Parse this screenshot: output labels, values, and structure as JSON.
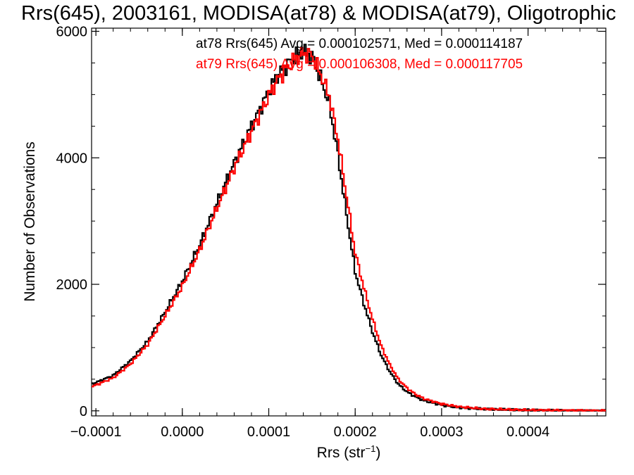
{
  "chart_data": {
    "type": "line",
    "title": "Rrs(645), 2003161, MODISA(at78) & MODISA(at79), Oligotrophic",
    "xlabel": "Rrs (str",
    "xlabel_superscript": "−1",
    "xlabel_suffix": ")",
    "ylabel": "Number of Observations",
    "xlim": [
      -0.000105,
      0.00049
    ],
    "ylim": [
      -80,
      6050
    ],
    "x_ticks": [
      -0.0001,
      0.0,
      0.0001,
      0.0002,
      0.0003,
      0.0004
    ],
    "x_tick_labels": [
      "−0.0001",
      "0.0000",
      "0.0001",
      "0.0002",
      "0.0003",
      "0.0004"
    ],
    "y_ticks": [
      0,
      2000,
      4000,
      6000
    ],
    "y_tick_labels": [
      "0",
      "2000",
      "4000",
      "6000"
    ],
    "grid": false,
    "step": true,
    "annotations": [
      {
        "text": "at78 Rrs(645) Avg = 0.000102571, Med = 0.000114187",
        "color": "#000000"
      },
      {
        "text": "at79 Rrs(645) Avg = 0.000106308, Med = 0.000117705",
        "color": "#ff0000"
      }
    ],
    "series": [
      {
        "color": "#000000",
        "x": [
          -0.000105,
          -8e-05,
          -6e-05,
          -4e-05,
          -2e-05,
          0.0,
          2e-05,
          4e-05,
          6e-05,
          8e-05,
          0.0001,
          0.00011,
          0.00012,
          0.00013,
          0.00014,
          0.00015,
          0.00016,
          0.00017,
          0.00018,
          0.00019,
          0.0002,
          0.00021,
          0.00022,
          0.00023,
          0.00024,
          0.00025,
          0.00026,
          0.00027,
          0.00028,
          0.0003,
          0.00032,
          0.00035,
          0.0004,
          0.00049
        ],
        "values": [
          420,
          560,
          790,
          1100,
          1560,
          2050,
          2620,
          3280,
          3920,
          4500,
          5050,
          5300,
          5450,
          5600,
          5680,
          5600,
          5250,
          4850,
          4050,
          3100,
          2200,
          1700,
          1250,
          880,
          620,
          420,
          300,
          220,
          160,
          90,
          50,
          25,
          10,
          2
        ]
      },
      {
        "color": "#ff0000",
        "x": [
          -0.000105,
          -8e-05,
          -6e-05,
          -4e-05,
          -2e-05,
          0.0,
          2e-05,
          4e-05,
          6e-05,
          8e-05,
          0.0001,
          0.00011,
          0.00012,
          0.00013,
          0.00014,
          0.00015,
          0.00016,
          0.00017,
          0.00018,
          0.00019,
          0.0002,
          0.00021,
          0.00022,
          0.00023,
          0.00024,
          0.00025,
          0.00026,
          0.00027,
          0.00028,
          0.0003,
          0.00032,
          0.00035,
          0.0004,
          0.00049
        ],
        "values": [
          380,
          520,
          740,
          1050,
          1500,
          1970,
          2540,
          3200,
          3840,
          4420,
          4980,
          5230,
          5400,
          5560,
          5650,
          5620,
          5320,
          4980,
          4300,
          3400,
          2500,
          1950,
          1450,
          1030,
          730,
          500,
          360,
          260,
          190,
          110,
          65,
          30,
          12,
          3
        ]
      }
    ]
  }
}
